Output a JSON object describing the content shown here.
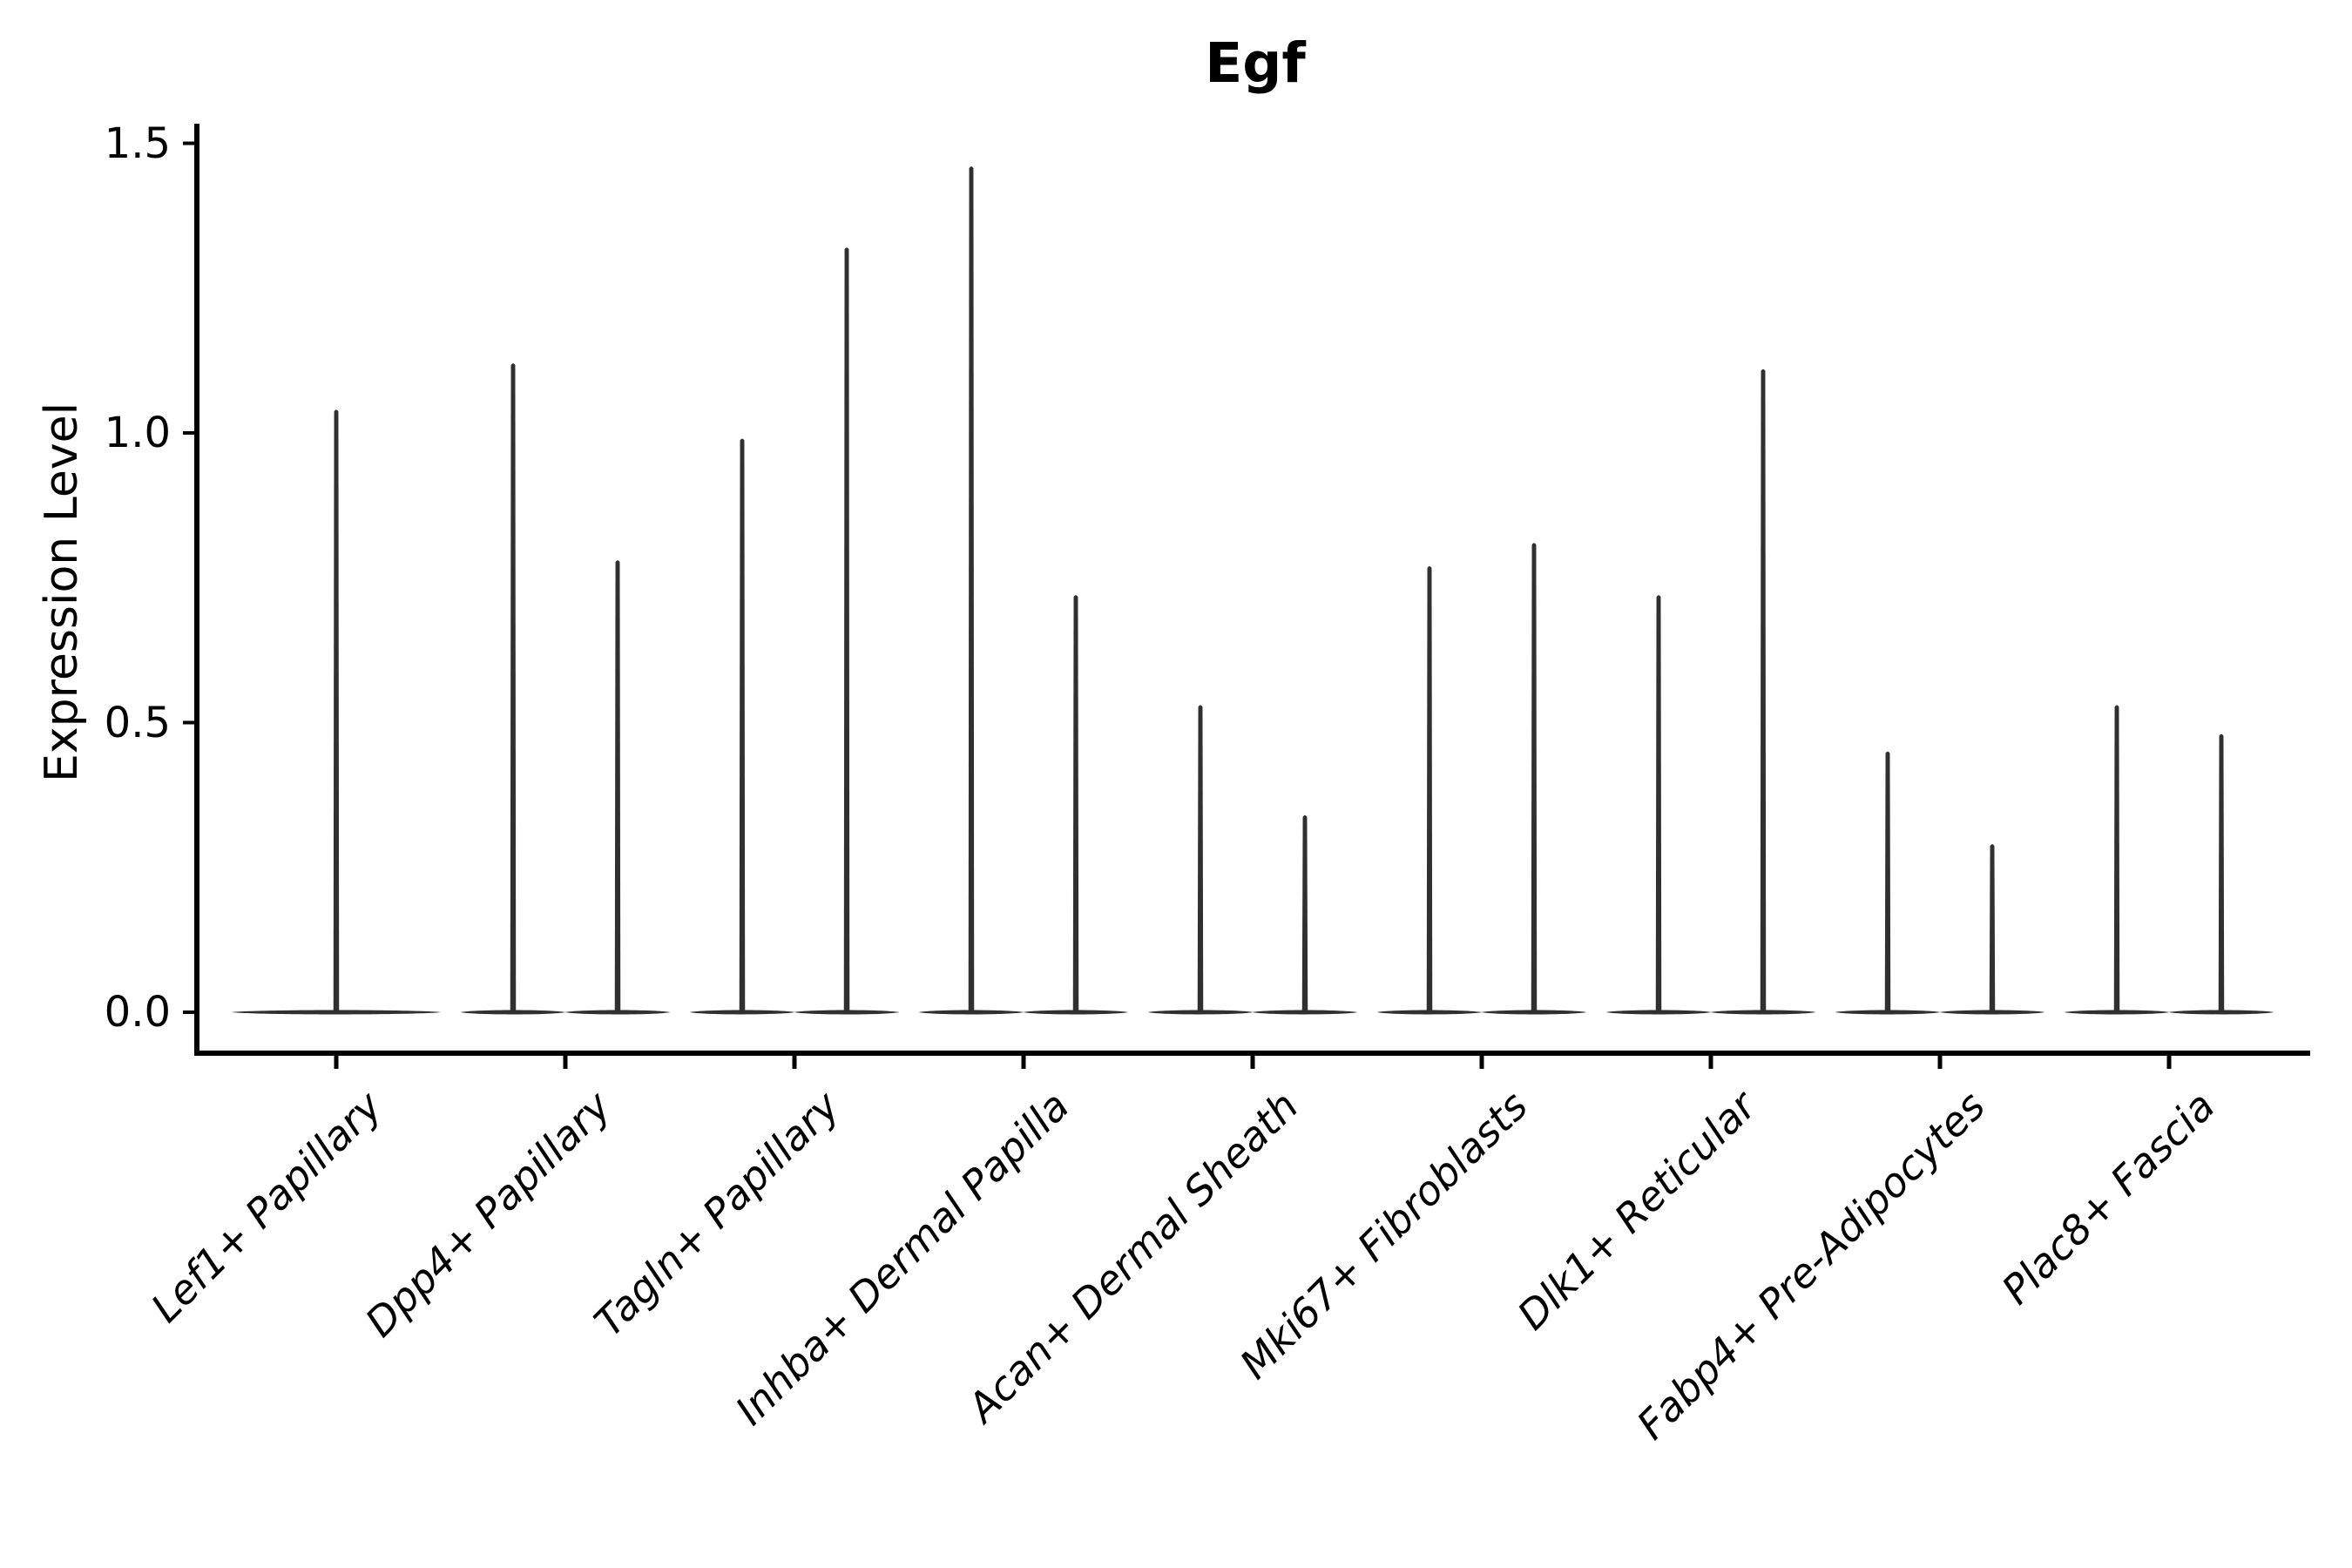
{
  "title": "Egf",
  "axes": {
    "y_label": "Expression Level",
    "y_tick_labels": [
      "0.0",
      "0.5",
      "1.0",
      "1.5"
    ]
  },
  "colors": {
    "violin": "#303030",
    "axis": "#000000",
    "text": "#000000",
    "background": "#ffffff"
  },
  "chart_data": {
    "type": "violin",
    "title": "Egf",
    "xlabel": "",
    "ylabel": "Expression Level",
    "ylim": [
      0,
      1.5
    ],
    "yticks": [
      0.0,
      0.5,
      1.0,
      1.5
    ],
    "ytick_labels": [
      "0.0",
      "0.5",
      "1.0",
      "1.5"
    ],
    "grid": false,
    "legend": "none",
    "x_tick_angle_deg": 45,
    "x_tick_style": "italic",
    "distribution_note": "Each violin's mass is concentrated at 0 (wide flat base at y=0) with a very thin spike reaching the maximum expression value",
    "categories": [
      "Lef1+ Papillary",
      "Dpp4+ Papillary",
      "Tagln+ Papillary",
      "Inhba+ Dermal Papilla",
      "Acan+ Dermal Sheath",
      "Mki67+ Fibroblasts",
      "Dlk1+ Reticular",
      "Fabp4+ Pre-Adipocytes",
      "Plac8+ Fascia"
    ],
    "series": [
      {
        "category": "Lef1+ Papillary",
        "violin_max": [
          1.04
        ]
      },
      {
        "category": "Dpp4+ Papillary",
        "violin_max": [
          1.12,
          0.78
        ]
      },
      {
        "category": "Tagln+ Papillary",
        "violin_max": [
          0.99,
          1.32
        ]
      },
      {
        "category": "Inhba+ Dermal Papilla",
        "violin_max": [
          1.46,
          0.72
        ]
      },
      {
        "category": "Acan+ Dermal Sheath",
        "violin_max": [
          0.53,
          0.34
        ]
      },
      {
        "category": "Mki67+ Fibroblasts",
        "violin_max": [
          0.77,
          0.81
        ]
      },
      {
        "category": "Dlk1+ Reticular",
        "violin_max": [
          0.72,
          1.11
        ]
      },
      {
        "category": "Fabp4+ Pre-Adipocytes",
        "violin_max": [
          0.45,
          0.29
        ]
      },
      {
        "category": "Plac8+ Fascia",
        "violin_max": [
          0.53,
          0.48
        ]
      }
    ]
  }
}
